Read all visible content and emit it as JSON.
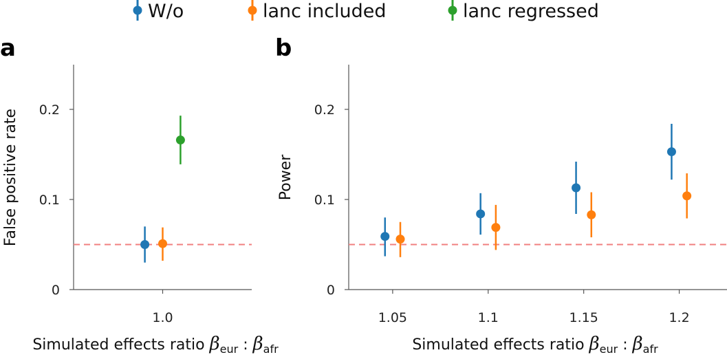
{
  "colors": {
    "series_wo": "#1f77b4",
    "series_lanc_included": "#ff7f0e",
    "series_lanc_regressed": "#2ca02c",
    "reference_line": "#f08080",
    "axis": "#555555"
  },
  "legend": [
    {
      "name": "W/o",
      "color": "#1f77b4"
    },
    {
      "name": "lanc included",
      "color": "#ff7f0e"
    },
    {
      "name": "lanc regressed",
      "color": "#2ca02c"
    }
  ],
  "chart_data": [
    {
      "panel": "a",
      "type": "scatter",
      "ylabel": "False positive rate",
      "xlabel_text": "Simulated effects ratio",
      "xlabel_beta1": "β",
      "xlabel_sub1": "eur",
      "xlabel_colon": ":",
      "xlabel_beta2": "β",
      "xlabel_sub2": "afr",
      "x_ticks": [
        1.0
      ],
      "x_tick_labels": [
        "1.0"
      ],
      "xlim": [
        0.85,
        1.15
      ],
      "ylim": [
        0,
        0.25
      ],
      "y_ticks": [
        0,
        0.1,
        0.2
      ],
      "y_tick_labels": [
        "0",
        "0.1",
        "0.2"
      ],
      "reference_y": 0.05,
      "grid": false,
      "series": [
        {
          "name": "W/o",
          "color": "#1f77b4",
          "points": [
            {
              "x": 1.0,
              "offset": -0.03,
              "y": 0.05,
              "lo": 0.03,
              "hi": 0.07
            }
          ]
        },
        {
          "name": "lanc included",
          "color": "#ff7f0e",
          "points": [
            {
              "x": 1.0,
              "offset": 0.0,
              "y": 0.051,
              "lo": 0.032,
              "hi": 0.069
            }
          ]
        },
        {
          "name": "lanc regressed",
          "color": "#2ca02c",
          "points": [
            {
              "x": 1.0,
              "offset": 0.03,
              "y": 0.166,
              "lo": 0.139,
              "hi": 0.193
            }
          ]
        }
      ]
    },
    {
      "panel": "b",
      "type": "scatter",
      "ylabel": "Power",
      "xlabel_text": "Simulated effects ratio",
      "xlabel_beta1": "β",
      "xlabel_sub1": "eur",
      "xlabel_colon": ":",
      "xlabel_beta2": "β",
      "xlabel_sub2": "afr",
      "x_ticks": [
        1.05,
        1.1,
        1.15,
        1.2
      ],
      "x_tick_labels": [
        "1.05",
        "1.1",
        "1.15",
        "1.2"
      ],
      "xlim": [
        1.027,
        1.225
      ],
      "ylim": [
        0,
        0.25
      ],
      "y_ticks": [
        0,
        0.1,
        0.2
      ],
      "y_tick_labels": [
        "0",
        "0.1",
        "0.2"
      ],
      "reference_y": 0.05,
      "grid": false,
      "series": [
        {
          "name": "W/o",
          "color": "#1f77b4",
          "points": [
            {
              "x": 1.05,
              "offset": -0.004,
              "y": 0.059,
              "lo": 0.037,
              "hi": 0.08
            },
            {
              "x": 1.1,
              "offset": -0.004,
              "y": 0.084,
              "lo": 0.061,
              "hi": 0.107
            },
            {
              "x": 1.15,
              "offset": -0.004,
              "y": 0.113,
              "lo": 0.084,
              "hi": 0.142
            },
            {
              "x": 1.2,
              "offset": -0.004,
              "y": 0.153,
              "lo": 0.122,
              "hi": 0.184
            }
          ]
        },
        {
          "name": "lanc included",
          "color": "#ff7f0e",
          "points": [
            {
              "x": 1.05,
              "offset": 0.004,
              "y": 0.056,
              "lo": 0.036,
              "hi": 0.075
            },
            {
              "x": 1.1,
              "offset": 0.004,
              "y": 0.069,
              "lo": 0.044,
              "hi": 0.094
            },
            {
              "x": 1.15,
              "offset": 0.004,
              "y": 0.083,
              "lo": 0.058,
              "hi": 0.108
            },
            {
              "x": 1.2,
              "offset": 0.004,
              "y": 0.104,
              "lo": 0.079,
              "hi": 0.129
            }
          ]
        }
      ]
    }
  ]
}
